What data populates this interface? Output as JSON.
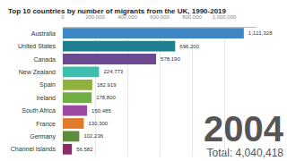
{
  "chart_data": {
    "type": "bar",
    "orientation": "horizontal",
    "title": "Top 10 countries by number of migrants from the UK, 1990-2019",
    "categories": [
      "Australia",
      "United States",
      "Canada",
      "New Zealand",
      "Spain",
      "Ireland",
      "South Africa",
      "France",
      "Germany",
      "Channel Islands"
    ],
    "values": [
      1121328,
      696200,
      578190,
      224773,
      182919,
      178800,
      150485,
      130300,
      102236,
      56582
    ],
    "value_labels": [
      "1,121,328",
      "696,200",
      "578,190",
      "224,773",
      "182,919",
      "178,800",
      "150,485",
      "130,300",
      "102,236",
      "56,582"
    ],
    "colors": [
      "#3f86c4",
      "#1f7f8f",
      "#6b4a92",
      "#3cbfae",
      "#8fb13d",
      "#6fae44",
      "#9a4aa0",
      "#e07b2b",
      "#5d8c3a",
      "#8a2c68"
    ],
    "data_labels": true,
    "xlim": [
      0,
      1200000
    ],
    "xticks": [
      0,
      {
        "value": 200000,
        "label": "200,000"
      },
      {
        "value": 400000,
        "label": "400,000"
      },
      {
        "value": 600000,
        "label": "600,000"
      },
      {
        "value": 800000,
        "label": "800,000"
      },
      {
        "value": 1000000,
        "label": "1,000,000"
      }
    ],
    "grid": true,
    "annotations": [
      "2004",
      "Total: 4,040,418"
    ]
  }
}
